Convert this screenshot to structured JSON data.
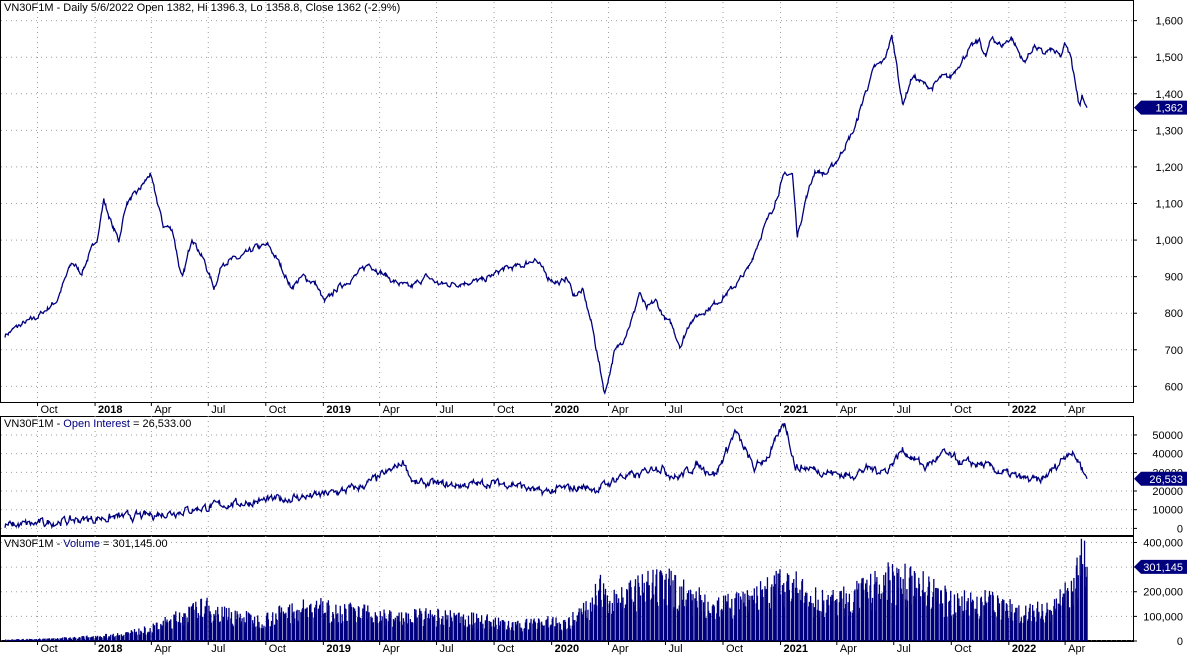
{
  "panels": {
    "price": {
      "title": "VN30F1M - Daily 5/6/2022 Open 1382, Hi 1396.3, Lo 1358.8, Close 1362 (-2.9%)",
      "last_label": "1,362",
      "last_value": 1362
    },
    "open_interest": {
      "title_prefix": "VN30F1M - ",
      "title_series": "Open Interest",
      "title_value": " = 26,533.00",
      "last_label": "26,533",
      "last_value": 26533
    },
    "volume": {
      "title_prefix": "VN30F1M - ",
      "title_series": "Volume",
      "title_value": " = 301,145.00",
      "last_label": "301,145",
      "last_value": 301145
    }
  },
  "colors": {
    "series": "#00007f",
    "marker_bg": "#00007f",
    "marker_text": "#ffffff",
    "grid": "#9e9e9e",
    "frame": "#000000"
  },
  "chart_data": [
    {
      "type": "line",
      "panel": "price",
      "ylim": [
        560,
        1640
      ],
      "yticks": [
        600,
        700,
        800,
        900,
        1000,
        1100,
        1200,
        1300,
        1400,
        1500,
        1600
      ],
      "ytick_labels": [
        "600",
        "700",
        "800",
        "900",
        "1,000",
        "1,100",
        "1,200",
        "1,300",
        "1,400",
        "1,500",
        "1,600"
      ],
      "xlim": [
        "2017-08-10",
        "2022-05-06"
      ],
      "x_ticks": [
        {
          "date": "2017-10-01",
          "label": "Oct",
          "bold": false
        },
        {
          "date": "2018-01-01",
          "label": "2018",
          "bold": true
        },
        {
          "date": "2018-04-01",
          "label": "Apr",
          "bold": false
        },
        {
          "date": "2018-07-01",
          "label": "Jul",
          "bold": false
        },
        {
          "date": "2018-10-01",
          "label": "Oct",
          "bold": false
        },
        {
          "date": "2019-01-01",
          "label": "2019",
          "bold": true
        },
        {
          "date": "2019-04-01",
          "label": "Apr",
          "bold": false
        },
        {
          "date": "2019-07-01",
          "label": "Jul",
          "bold": false
        },
        {
          "date": "2019-10-01",
          "label": "Oct",
          "bold": false
        },
        {
          "date": "2020-01-01",
          "label": "2020",
          "bold": true
        },
        {
          "date": "2020-04-01",
          "label": "Apr",
          "bold": false
        },
        {
          "date": "2020-07-01",
          "label": "Jul",
          "bold": false
        },
        {
          "date": "2020-10-01",
          "label": "Oct",
          "bold": false
        },
        {
          "date": "2021-01-01",
          "label": "2021",
          "bold": true
        },
        {
          "date": "2021-04-01",
          "label": "Apr",
          "bold": false
        },
        {
          "date": "2021-07-01",
          "label": "Jul",
          "bold": false
        },
        {
          "date": "2021-10-01",
          "label": "Oct",
          "bold": false
        },
        {
          "date": "2022-01-01",
          "label": "2022",
          "bold": true
        },
        {
          "date": "2022-04-01",
          "label": "Apr",
          "bold": false
        }
      ],
      "grid": true,
      "points": [
        [
          "2017-08-10",
          740
        ],
        [
          "2017-09-01",
          765
        ],
        [
          "2017-10-01",
          790
        ],
        [
          "2017-11-01",
          835
        ],
        [
          "2017-11-25",
          940
        ],
        [
          "2017-12-10",
          910
        ],
        [
          "2018-01-05",
          1010
        ],
        [
          "2018-01-15",
          1110
        ],
        [
          "2018-01-28",
          1040
        ],
        [
          "2018-02-08",
          1000
        ],
        [
          "2018-02-20",
          1100
        ],
        [
          "2018-03-10",
          1130
        ],
        [
          "2018-03-30",
          1180
        ],
        [
          "2018-04-20",
          1040
        ],
        [
          "2018-05-05",
          1030
        ],
        [
          "2018-05-20",
          885
        ],
        [
          "2018-06-05",
          1010
        ],
        [
          "2018-06-25",
          940
        ],
        [
          "2018-07-10",
          870
        ],
        [
          "2018-07-25",
          940
        ],
        [
          "2018-08-20",
          950
        ],
        [
          "2018-09-15",
          980
        ],
        [
          "2018-10-05",
          985
        ],
        [
          "2018-10-25",
          930
        ],
        [
          "2018-11-10",
          870
        ],
        [
          "2018-11-30",
          900
        ],
        [
          "2018-12-20",
          880
        ],
        [
          "2019-01-03",
          830
        ],
        [
          "2019-01-25",
          870
        ],
        [
          "2019-02-20",
          900
        ],
        [
          "2019-03-15",
          935
        ],
        [
          "2019-04-05",
          910
        ],
        [
          "2019-04-25",
          885
        ],
        [
          "2019-05-20",
          870
        ],
        [
          "2019-06-15",
          900
        ],
        [
          "2019-07-05",
          880
        ],
        [
          "2019-07-25",
          880
        ],
        [
          "2019-08-20",
          885
        ],
        [
          "2019-09-15",
          890
        ],
        [
          "2019-10-15",
          920
        ],
        [
          "2019-11-15",
          930
        ],
        [
          "2019-12-05",
          950
        ],
        [
          "2019-12-25",
          900
        ],
        [
          "2020-01-15",
          880
        ],
        [
          "2020-01-25",
          900
        ],
        [
          "2020-02-05",
          850
        ],
        [
          "2020-02-20",
          860
        ],
        [
          "2020-03-05",
          770
        ],
        [
          "2020-03-15",
          680
        ],
        [
          "2020-03-26",
          580
        ],
        [
          "2020-04-10",
          690
        ],
        [
          "2020-04-25",
          730
        ],
        [
          "2020-05-10",
          790
        ],
        [
          "2020-05-20",
          855
        ],
        [
          "2020-06-01",
          810
        ],
        [
          "2020-06-15",
          835
        ],
        [
          "2020-06-30",
          785
        ],
        [
          "2020-07-10",
          770
        ],
        [
          "2020-07-25",
          710
        ],
        [
          "2020-08-10",
          780
        ],
        [
          "2020-09-05",
          810
        ],
        [
          "2020-09-25",
          835
        ],
        [
          "2020-10-20",
          875
        ],
        [
          "2020-11-10",
          920
        ],
        [
          "2020-11-30",
          1010
        ],
        [
          "2020-12-20",
          1090
        ],
        [
          "2021-01-08",
          1180
        ],
        [
          "2021-01-20",
          1180
        ],
        [
          "2021-01-28",
          1010
        ],
        [
          "2021-02-10",
          1110
        ],
        [
          "2021-02-25",
          1190
        ],
        [
          "2021-03-15",
          1180
        ],
        [
          "2021-03-31",
          1215
        ],
        [
          "2021-04-15",
          1260
        ],
        [
          "2021-04-30",
          1305
        ],
        [
          "2021-05-15",
          1395
        ],
        [
          "2021-05-31",
          1470
        ],
        [
          "2021-06-15",
          1490
        ],
        [
          "2021-06-28",
          1555
        ],
        [
          "2021-07-06",
          1480
        ],
        [
          "2021-07-15",
          1370
        ],
        [
          "2021-07-31",
          1450
        ],
        [
          "2021-08-15",
          1430
        ],
        [
          "2021-08-31",
          1415
        ],
        [
          "2021-09-15",
          1445
        ],
        [
          "2021-09-30",
          1445
        ],
        [
          "2021-10-15",
          1485
        ],
        [
          "2021-10-31",
          1525
        ],
        [
          "2021-11-15",
          1545
        ],
        [
          "2021-11-25",
          1500
        ],
        [
          "2021-12-05",
          1555
        ],
        [
          "2021-12-20",
          1530
        ],
        [
          "2022-01-05",
          1555
        ],
        [
          "2022-01-15",
          1520
        ],
        [
          "2022-01-25",
          1485
        ],
        [
          "2022-02-10",
          1530
        ],
        [
          "2022-02-25",
          1510
        ],
        [
          "2022-03-10",
          1520
        ],
        [
          "2022-03-25",
          1500
        ],
        [
          "2022-04-01",
          1535
        ],
        [
          "2022-04-10",
          1500
        ],
        [
          "2022-04-18",
          1430
        ],
        [
          "2022-04-24",
          1360
        ],
        [
          "2022-04-28",
          1400
        ],
        [
          "2022-05-06",
          1362
        ]
      ]
    },
    {
      "type": "line",
      "panel": "open_interest",
      "ylim": [
        -3000,
        58000
      ],
      "yticks": [
        0,
        10000,
        20000,
        30000,
        40000,
        50000
      ],
      "ytick_labels": [
        "0",
        "10000",
        "20000",
        "30000",
        "40000",
        "50000"
      ],
      "grid": true,
      "points": [
        [
          "2017-08-10",
          1500
        ],
        [
          "2017-10-01",
          2500
        ],
        [
          "2017-12-01",
          4500
        ],
        [
          "2018-02-01",
          6000
        ],
        [
          "2018-04-01",
          7000
        ],
        [
          "2018-06-01",
          10000
        ],
        [
          "2018-08-01",
          13000
        ],
        [
          "2018-09-20",
          14500
        ],
        [
          "2018-11-01",
          16000
        ],
        [
          "2019-01-01",
          18000
        ],
        [
          "2019-03-01",
          22000
        ],
        [
          "2019-04-15",
          30000
        ],
        [
          "2019-05-10",
          36000
        ],
        [
          "2019-05-25",
          24000
        ],
        [
          "2019-06-20",
          24000
        ],
        [
          "2019-08-01",
          23000
        ],
        [
          "2019-09-20",
          24000
        ],
        [
          "2019-11-01",
          24000
        ],
        [
          "2019-12-15",
          19000
        ],
        [
          "2020-01-15",
          21000
        ],
        [
          "2020-02-20",
          22000
        ],
        [
          "2020-03-15",
          21000
        ],
        [
          "2020-04-20",
          28000
        ],
        [
          "2020-05-20",
          28000
        ],
        [
          "2020-06-15",
          34000
        ],
        [
          "2020-07-20",
          27000
        ],
        [
          "2020-08-20",
          34000
        ],
        [
          "2020-09-20",
          29000
        ],
        [
          "2020-10-20",
          52000
        ],
        [
          "2020-11-20",
          32000
        ],
        [
          "2020-12-15",
          40000
        ],
        [
          "2021-01-08",
          57000
        ],
        [
          "2021-01-25",
          33000
        ],
        [
          "2021-02-20",
          32000
        ],
        [
          "2021-03-20",
          30000
        ],
        [
          "2021-04-20",
          28000
        ],
        [
          "2021-05-20",
          32000
        ],
        [
          "2021-06-20",
          31000
        ],
        [
          "2021-07-15",
          42000
        ],
        [
          "2021-08-20",
          33000
        ],
        [
          "2021-09-20",
          40000
        ],
        [
          "2021-10-20",
          35000
        ],
        [
          "2021-11-20",
          34000
        ],
        [
          "2021-12-20",
          30000
        ],
        [
          "2022-01-20",
          27000
        ],
        [
          "2022-02-20",
          25000
        ],
        [
          "2022-03-20",
          34000
        ],
        [
          "2022-04-08",
          42000
        ],
        [
          "2022-04-25",
          35000
        ],
        [
          "2022-05-06",
          26533
        ]
      ]
    },
    {
      "type": "bar",
      "panel": "volume",
      "ylim": [
        0,
        410000
      ],
      "yticks": [
        0,
        100000,
        200000,
        300000,
        400000
      ],
      "ytick_labels": [
        "0",
        "100,000",
        "200,000",
        "300,000",
        "400,000"
      ],
      "grid": true,
      "points": [
        [
          "2017-08-10",
          5000
        ],
        [
          "2017-10-01",
          8000
        ],
        [
          "2017-12-01",
          14000
        ],
        [
          "2018-02-01",
          25000
        ],
        [
          "2018-03-31",
          50000
        ],
        [
          "2018-05-15",
          100000
        ],
        [
          "2018-06-25",
          140000
        ],
        [
          "2018-08-01",
          110000
        ],
        [
          "2018-09-20",
          85000
        ],
        [
          "2018-11-01",
          120000
        ],
        [
          "2018-12-15",
          140000
        ],
        [
          "2019-02-01",
          125000
        ],
        [
          "2019-03-20",
          110000
        ],
        [
          "2019-05-01",
          95000
        ],
        [
          "2019-06-15",
          105000
        ],
        [
          "2019-08-01",
          95000
        ],
        [
          "2019-09-20",
          85000
        ],
        [
          "2019-11-01",
          60000
        ],
        [
          "2019-12-15",
          85000
        ],
        [
          "2020-01-20",
          70000
        ],
        [
          "2020-02-20",
          120000
        ],
        [
          "2020-03-20",
          210000
        ],
        [
          "2020-04-25",
          180000
        ],
        [
          "2020-06-01",
          220000
        ],
        [
          "2020-07-10",
          230000
        ],
        [
          "2020-08-20",
          170000
        ],
        [
          "2020-10-01",
          145000
        ],
        [
          "2020-11-10",
          165000
        ],
        [
          "2020-12-15",
          215000
        ],
        [
          "2021-01-15",
          240000
        ],
        [
          "2021-02-20",
          170000
        ],
        [
          "2021-03-20",
          165000
        ],
        [
          "2021-04-20",
          175000
        ],
        [
          "2021-05-20",
          205000
        ],
        [
          "2021-06-15",
          240000
        ],
        [
          "2021-07-10",
          260000
        ],
        [
          "2021-08-20",
          220000
        ],
        [
          "2021-09-20",
          175000
        ],
        [
          "2021-10-20",
          160000
        ],
        [
          "2021-11-20",
          165000
        ],
        [
          "2021-12-20",
          150000
        ],
        [
          "2022-01-20",
          120000
        ],
        [
          "2022-02-20",
          125000
        ],
        [
          "2022-03-20",
          150000
        ],
        [
          "2022-04-18",
          245000
        ],
        [
          "2022-04-28",
          330000
        ],
        [
          "2022-05-06",
          301145
        ]
      ]
    }
  ]
}
